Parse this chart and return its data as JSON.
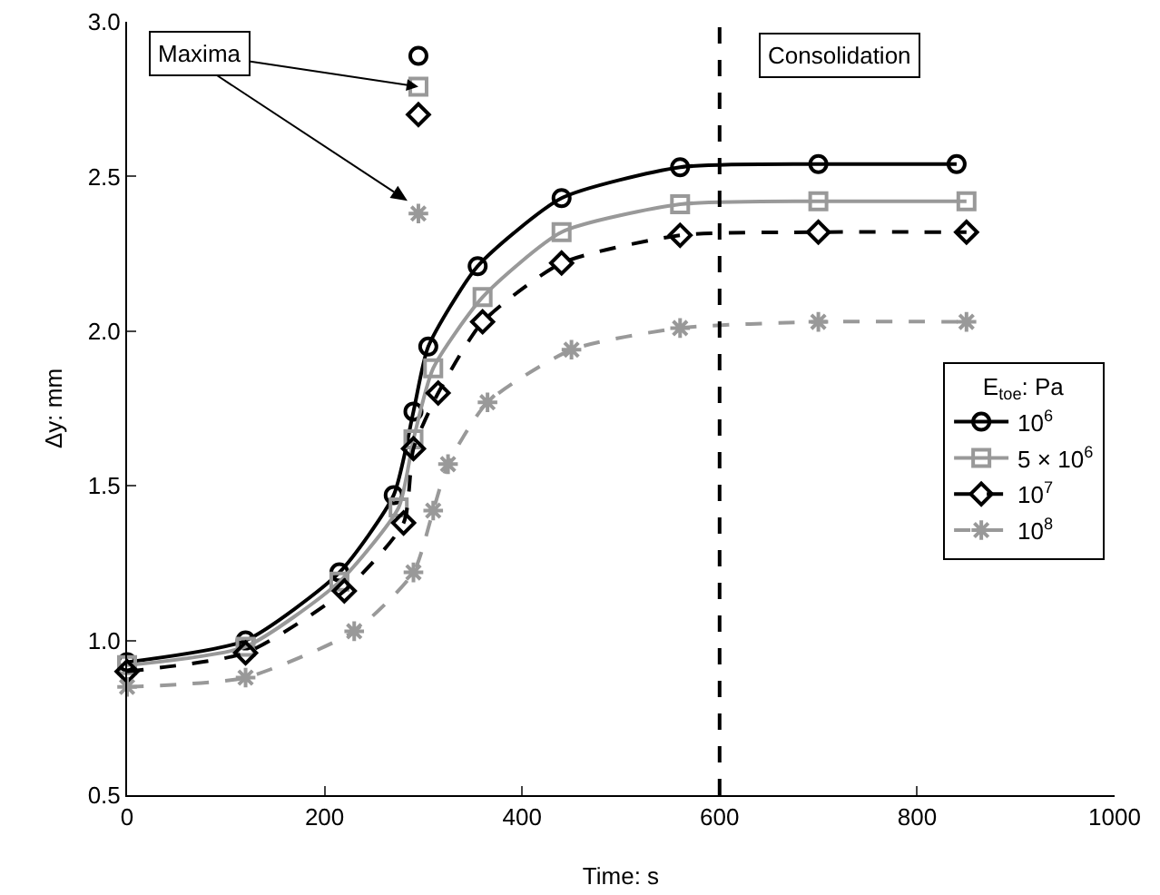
{
  "chart_data": {
    "type": "line",
    "xlabel": "Time: s",
    "ylabel": "Δy: mm",
    "legend_title": "E$_{toe}$: Pa",
    "legend": "right",
    "grid": false,
    "xlim": [
      0,
      1000
    ],
    "xticks": [
      0,
      200,
      400,
      600,
      800,
      1000
    ],
    "ylim": [
      0.5,
      3.0
    ],
    "yticks": [
      0.5,
      {
        "value": 1.0,
        "label": "1.0"
      },
      1.5,
      {
        "value": 2.0,
        "label": "2.0"
      },
      2.5,
      {
        "value": 3.0,
        "label": "3.0"
      }
    ],
    "ref_lines": [
      {
        "axis": "x",
        "value": 600,
        "label": "Consolidation",
        "color": "#000000",
        "line_style": "dashed"
      }
    ],
    "annotations": [
      {
        "text": "Maxima",
        "x": 295,
        "y": 2.79
      }
    ],
    "series": [
      {
        "name": "10$^{6}$",
        "color": "#000000",
        "marker": "circle",
        "line_style": "solid",
        "x": [
          0,
          120,
          215,
          270,
          290,
          305,
          355,
          440,
          560,
          700,
          840
        ],
        "values": [
          0.93,
          1.0,
          1.22,
          1.47,
          1.74,
          1.95,
          2.21,
          2.43,
          2.53,
          2.54,
          2.54
        ]
      },
      {
        "name": "5 × 10$^{6}$",
        "color": "#999999",
        "marker": "square",
        "line_style": "solid",
        "x": [
          0,
          120,
          215,
          275,
          290,
          310,
          360,
          440,
          560,
          700,
          850
        ],
        "values": [
          0.92,
          0.98,
          1.19,
          1.43,
          1.65,
          1.88,
          2.11,
          2.32,
          2.41,
          2.42,
          2.42
        ]
      },
      {
        "name": "10$^{7}$",
        "color": "#000000",
        "marker": "diamond",
        "line_style": "dashed",
        "x": [
          0,
          120,
          220,
          280,
          290,
          315,
          360,
          440,
          560,
          700,
          850
        ],
        "values": [
          0.9,
          0.96,
          1.16,
          1.38,
          1.62,
          1.8,
          2.03,
          2.22,
          2.31,
          2.32,
          2.32
        ]
      },
      {
        "name": "10$^{8}$",
        "color": "#999999",
        "marker": "cross",
        "line_style": "dashed",
        "x": [
          0,
          120,
          230,
          290,
          310,
          325,
          365,
          450,
          560,
          700,
          850
        ],
        "values": [
          0.85,
          0.88,
          1.03,
          1.22,
          1.42,
          1.57,
          1.77,
          1.94,
          2.01,
          2.03,
          2.03
        ]
      },
      {
        "type": "scatter",
        "color": "#000000",
        "marker": "circle",
        "x": [
          295
        ],
        "values": [
          2.89
        ]
      },
      {
        "type": "scatter",
        "color": "#999999",
        "marker": "square",
        "x": [
          295
        ],
        "values": [
          2.79
        ]
      },
      {
        "type": "scatter",
        "color": "#000000",
        "marker": "diamond",
        "x": [
          295
        ],
        "values": [
          2.7
        ]
      },
      {
        "type": "scatter",
        "color": "#999999",
        "marker": "cross",
        "x": [
          295
        ],
        "values": [
          2.38
        ]
      }
    ]
  }
}
